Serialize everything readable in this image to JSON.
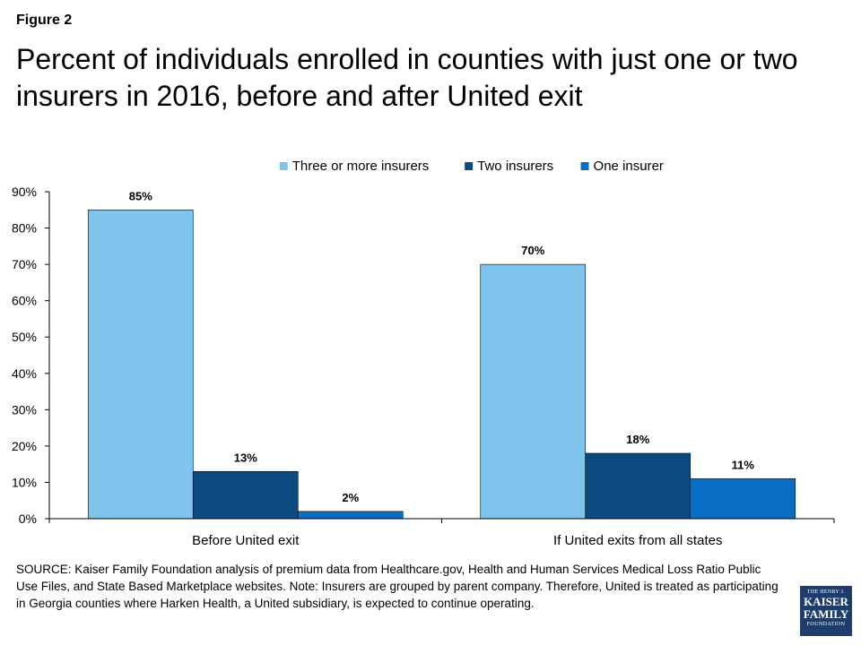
{
  "figure_label": "Figure 2",
  "title": "Percent of individuals enrolled in counties with just one or two insurers in 2016, before and after United exit",
  "source_note": "SOURCE: Kaiser Family Foundation analysis of premium data from Healthcare.gov, Health and Human Services Medical Loss Ratio Public Use Files, and State Based Marketplace websites. Note: Insurers are grouped by parent company. Therefore, United is treated as participating in Georgia counties where Harken Health, a United subsidiary, is expected to continue operating.",
  "logo": {
    "line1": "THE HENRY J.",
    "line2": "KAISER",
    "line3": "FAMILY",
    "line4": "FOUNDATION"
  },
  "chart_data": {
    "type": "bar",
    "title": "",
    "xlabel": "",
    "ylabel": "",
    "categories": [
      "Before United exit",
      "If United exits from all states"
    ],
    "series": [
      {
        "name": "Three or more insurers",
        "color": "#7fc4ec",
        "values": [
          85,
          70
        ],
        "labels": [
          "85%",
          "70%"
        ]
      },
      {
        "name": "Two insurers",
        "color": "#0d4a7f",
        "values": [
          13,
          18
        ],
        "labels": [
          "13%",
          "18%"
        ]
      },
      {
        "name": "One insurer",
        "color": "#0a6fc4",
        "values": [
          2,
          11
        ],
        "labels": [
          "2%",
          "11%"
        ]
      }
    ],
    "ylim": [
      0,
      90
    ],
    "yticks": [
      0,
      10,
      20,
      30,
      40,
      50,
      60,
      70,
      80,
      90
    ],
    "ytick_labels": [
      "0%",
      "10%",
      "20%",
      "30%",
      "40%",
      "50%",
      "60%",
      "70%",
      "80%",
      "90%"
    ],
    "grid": false,
    "legend_position": "top"
  }
}
